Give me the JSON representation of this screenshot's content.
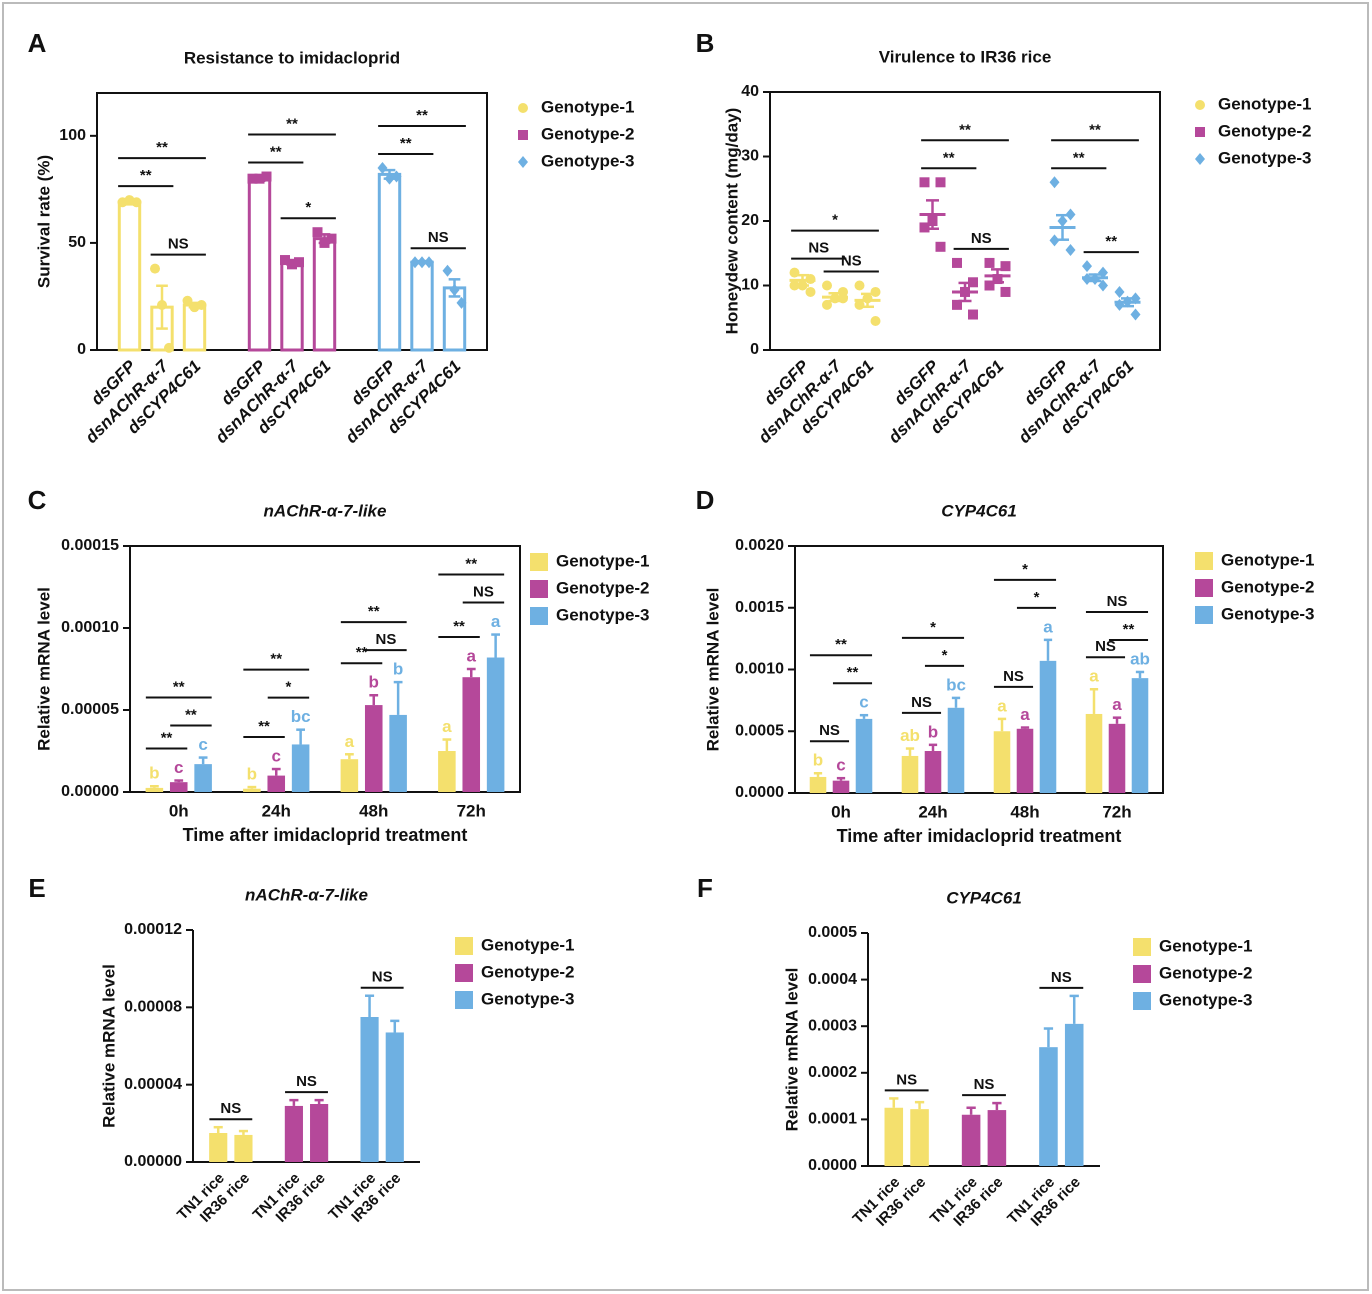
{
  "chart_data": [
    {
      "panel": "A",
      "type": "bar",
      "hollow": true,
      "grouping": "series",
      "frame": true,
      "label_style": "italic",
      "title": "Resistance to imidacloprid",
      "y_label": "Survival rate (%)",
      "categories": [
        "dsGFP",
        "dsnAChR-α-7",
        "dsCYP4C61"
      ],
      "ylim": [
        0,
        120
      ],
      "yticks": [
        0,
        50,
        100
      ],
      "markers": [
        "circle",
        "square",
        "diamond"
      ],
      "series": [
        {
          "name": "Genotype-1",
          "color": "#f4e06d",
          "values": [
            69,
            20,
            21
          ],
          "errors": [
            1,
            10,
            1
          ],
          "points": [
            [
              69,
              70,
              69
            ],
            [
              38,
              21,
              1
            ],
            [
              23,
              20,
              21
            ]
          ]
        },
        {
          "name": "Genotype-2",
          "color": "#b5489a",
          "values": [
            80,
            41,
            52
          ],
          "errors": [
            1,
            1,
            2
          ],
          "points": [
            [
              80,
              80,
              81
            ],
            [
              42,
              40,
              41
            ],
            [
              55,
              50,
              52
            ]
          ]
        },
        {
          "name": "Genotype-3",
          "color": "#6eb0e2",
          "values": [
            82,
            41,
            29
          ],
          "errors": [
            2,
            0.5,
            4
          ],
          "points": [
            [
              85,
              80,
              81
            ],
            [
              41,
              41,
              41
            ],
            [
              37,
              28,
              22
            ]
          ]
        }
      ],
      "annotations": [
        {
          "label": "**",
          "series": 0,
          "pair": [
            0,
            1
          ]
        },
        {
          "label": "NS",
          "series": 0,
          "pair": [
            1,
            2
          ]
        },
        {
          "label": "**",
          "series": 0,
          "pair": [
            0,
            2
          ]
        },
        {
          "label": "**",
          "series": 1,
          "pair": [
            0,
            1
          ]
        },
        {
          "label": "*",
          "series": 1,
          "pair": [
            1,
            2
          ]
        },
        {
          "label": "**",
          "series": 1,
          "pair": [
            0,
            2
          ]
        },
        {
          "label": "**",
          "series": 2,
          "pair": [
            0,
            1
          ]
        },
        {
          "label": "NS",
          "series": 2,
          "pair": [
            1,
            2
          ]
        },
        {
          "label": "**",
          "series": 2,
          "pair": [
            0,
            2
          ]
        }
      ]
    },
    {
      "panel": "B",
      "type": "dot",
      "grouping": "series",
      "frame": true,
      "label_style": "italic",
      "title": "Virulence to IR36 rice",
      "y_label": "Honeydew content (mg/day)",
      "categories": [
        "dsGFP",
        "dsnAChR-α-7",
        "dsCYP4C61"
      ],
      "ylim": [
        0,
        40
      ],
      "yticks": [
        0,
        10,
        20,
        30,
        40
      ],
      "markers": [
        "circle",
        "square",
        "diamond"
      ],
      "series": [
        {
          "name": "Genotype-1",
          "color": "#f4e06d",
          "values": [
            10.8,
            8.2,
            7.7
          ],
          "errors": [
            0.8,
            0.6,
            1
          ],
          "points": [
            [
              12,
              11,
              10,
              10,
              9
            ],
            [
              10,
              9,
              8,
              7,
              8
            ],
            [
              10,
              9,
              8,
              7,
              4.5
            ]
          ]
        },
        {
          "name": "Genotype-2",
          "color": "#b5489a",
          "values": [
            21,
            9,
            11.5
          ],
          "errors": [
            2.2,
            1.4,
            1
          ],
          "points": [
            [
              26,
              26,
              20,
              19,
              16
            ],
            [
              13.5,
              10.5,
              9,
              7,
              5.5
            ],
            [
              13.5,
              13,
              11,
              10,
              9
            ]
          ]
        },
        {
          "name": "Genotype-3",
          "color": "#6eb0e2",
          "values": [
            19,
            11.2,
            7.4
          ],
          "errors": [
            1.9,
            0.5,
            0.6
          ],
          "points": [
            [
              26,
              21,
              20,
              17,
              15.5
            ],
            [
              13,
              12,
              11,
              11,
              10
            ],
            [
              9,
              8,
              7.5,
              7,
              5.5
            ]
          ]
        }
      ],
      "annotations": [
        {
          "label": "NS",
          "series": 0,
          "pair": [
            0,
            1
          ]
        },
        {
          "label": "NS",
          "series": 0,
          "pair": [
            1,
            2
          ]
        },
        {
          "label": "*",
          "series": 0,
          "pair": [
            0,
            2
          ]
        },
        {
          "label": "**",
          "series": 1,
          "pair": [
            0,
            1
          ]
        },
        {
          "label": "NS",
          "series": 1,
          "pair": [
            1,
            2
          ]
        },
        {
          "label": "**",
          "series": 1,
          "pair": [
            0,
            2
          ]
        },
        {
          "label": "**",
          "series": 2,
          "pair": [
            0,
            1
          ]
        },
        {
          "label": "**",
          "series": 2,
          "pair": [
            1,
            2
          ]
        },
        {
          "label": "**",
          "series": 2,
          "pair": [
            0,
            2
          ]
        }
      ]
    },
    {
      "panel": "C",
      "type": "bar",
      "grouping": "category",
      "frame": true,
      "title_style": "italic",
      "title": "nAChR-α-7-like",
      "y_label": "Relative mRNA level",
      "x_label": "Time after imidacloprid treatment",
      "categories": [
        "0h",
        "24h",
        "48h",
        "72h"
      ],
      "ylim": [
        0,
        0.00015
      ],
      "yticks": [
        {
          "value": 0,
          "label": "0.00000"
        },
        {
          "value": 5e-05,
          "label": "0.00005"
        },
        {
          "value": 0.0001,
          "label": "0.00010"
        },
        {
          "value": 0.00015,
          "label": "0.00015"
        }
      ],
      "series": [
        {
          "name": "Genotype-1",
          "color": "#f4e06d",
          "values": [
            2.5e-06,
            2e-06,
            2e-05,
            2.5e-05
          ],
          "errors": [
            1e-06,
            1e-06,
            3e-06,
            7e-06
          ],
          "letters": [
            "b",
            "b",
            "a",
            "a"
          ]
        },
        {
          "name": "Genotype-2",
          "color": "#b5489a",
          "values": [
            6e-06,
            1e-05,
            5.3e-05,
            7e-05
          ],
          "errors": [
            1e-06,
            4e-06,
            6e-06,
            5e-06
          ],
          "letters": [
            "c",
            "c",
            "b",
            "a"
          ]
        },
        {
          "name": "Genotype-3",
          "color": "#6eb0e2",
          "values": [
            1.7e-05,
            2.9e-05,
            4.7e-05,
            8.2e-05
          ],
          "errors": [
            4e-06,
            9e-06,
            2e-05,
            1.4e-05
          ],
          "letters": [
            "c",
            "bc",
            "b",
            "a"
          ]
        }
      ],
      "annotations": [
        {
          "label": "**",
          "category": 0,
          "pair": [
            0,
            1
          ]
        },
        {
          "label": "**",
          "category": 0,
          "pair": [
            1,
            2
          ]
        },
        {
          "label": "**",
          "category": 0,
          "pair": [
            0,
            2
          ]
        },
        {
          "label": "**",
          "category": 1,
          "pair": [
            0,
            1
          ]
        },
        {
          "label": "*",
          "category": 1,
          "pair": [
            1,
            2
          ]
        },
        {
          "label": "**",
          "category": 1,
          "pair": [
            0,
            2
          ]
        },
        {
          "label": "**",
          "category": 2,
          "pair": [
            0,
            1
          ]
        },
        {
          "label": "NS",
          "category": 2,
          "pair": [
            1,
            2
          ]
        },
        {
          "label": "**",
          "category": 2,
          "pair": [
            0,
            2
          ]
        },
        {
          "label": "**",
          "category": 3,
          "pair": [
            0,
            1
          ]
        },
        {
          "label": "NS",
          "category": 3,
          "pair": [
            1,
            2
          ]
        },
        {
          "label": "**",
          "category": 3,
          "pair": [
            0,
            2
          ]
        }
      ]
    },
    {
      "panel": "D",
      "type": "bar",
      "grouping": "category",
      "frame": true,
      "title_style": "italic",
      "title": "CYP4C61",
      "y_label": "Relative mRNA level",
      "x_label": "Time after imidacloprid treatment",
      "categories": [
        "0h",
        "24h",
        "48h",
        "72h"
      ],
      "ylim": [
        0,
        0.002
      ],
      "yticks": [
        {
          "value": 0,
          "label": "0.0000"
        },
        {
          "value": 0.0005,
          "label": "0.0005"
        },
        {
          "value": 0.001,
          "label": "0.0010"
        },
        {
          "value": 0.0015,
          "label": "0.0015"
        },
        {
          "value": 0.002,
          "label": "0.0020"
        }
      ],
      "series": [
        {
          "name": "Genotype-1",
          "color": "#f4e06d",
          "values": [
            0.00013,
            0.0003,
            0.0005,
            0.00064
          ],
          "errors": [
            3e-05,
            6e-05,
            0.0001,
            0.0002
          ],
          "letters": [
            "b",
            "ab",
            "a",
            "a"
          ]
        },
        {
          "name": "Genotype-2",
          "color": "#b5489a",
          "values": [
            0.0001,
            0.00034,
            0.00052,
            0.00056
          ],
          "errors": [
            2e-05,
            5e-05,
            1e-05,
            5e-05
          ],
          "letters": [
            "c",
            "b",
            "a",
            "a"
          ]
        },
        {
          "name": "Genotype-3",
          "color": "#6eb0e2",
          "values": [
            0.0006,
            0.00069,
            0.00107,
            0.00093
          ],
          "errors": [
            3e-05,
            8e-05,
            0.00017,
            5e-05
          ],
          "letters": [
            "c",
            "bc",
            "a",
            "ab"
          ]
        }
      ],
      "annotations": [
        {
          "label": "NS",
          "category": 0,
          "pair": [
            0,
            1
          ]
        },
        {
          "label": "**",
          "category": 0,
          "pair": [
            1,
            2
          ]
        },
        {
          "label": "**",
          "category": 0,
          "pair": [
            0,
            2
          ]
        },
        {
          "label": "NS",
          "category": 1,
          "pair": [
            0,
            1
          ]
        },
        {
          "label": "*",
          "category": 1,
          "pair": [
            1,
            2
          ]
        },
        {
          "label": "*",
          "category": 1,
          "pair": [
            0,
            2
          ]
        },
        {
          "label": "NS",
          "category": 2,
          "pair": [
            0,
            1
          ]
        },
        {
          "label": "*",
          "category": 2,
          "pair": [
            1,
            2
          ]
        },
        {
          "label": "*",
          "category": 2,
          "pair": [
            0,
            2
          ]
        },
        {
          "label": "NS",
          "category": 3,
          "pair": [
            0,
            1
          ]
        },
        {
          "label": "**",
          "category": 3,
          "pair": [
            1,
            2
          ]
        },
        {
          "label": "NS",
          "category": 3,
          "pair": [
            0,
            2
          ]
        }
      ]
    },
    {
      "panel": "E",
      "type": "bar",
      "grouping": "series",
      "frame": false,
      "title_style": "italic",
      "title": "nAChR-α-7-like",
      "y_label": "Relative mRNA level",
      "categories": [
        "TN1 rice",
        "IR36 rice"
      ],
      "ylim": [
        0,
        0.00012
      ],
      "yticks": [
        {
          "value": 0,
          "label": "0.00000"
        },
        {
          "value": 4e-05,
          "label": "0.00004"
        },
        {
          "value": 8e-05,
          "label": "0.00008"
        },
        {
          "value": 0.00012,
          "label": "0.00012"
        }
      ],
      "series": [
        {
          "name": "Genotype-1",
          "color": "#f4e06d",
          "values": [
            1.5e-05,
            1.4e-05
          ],
          "errors": [
            3e-06,
            2e-06
          ]
        },
        {
          "name": "Genotype-2",
          "color": "#b5489a",
          "values": [
            2.9e-05,
            3e-05
          ],
          "errors": [
            3e-06,
            2e-06
          ]
        },
        {
          "name": "Genotype-3",
          "color": "#6eb0e2",
          "values": [
            7.5e-05,
            6.7e-05
          ],
          "errors": [
            1.1e-05,
            6e-06
          ]
        }
      ],
      "annotations": [
        {
          "label": "NS",
          "series": 0,
          "pair": [
            0,
            1
          ]
        },
        {
          "label": "NS",
          "series": 1,
          "pair": [
            0,
            1
          ]
        },
        {
          "label": "NS",
          "series": 2,
          "pair": [
            0,
            1
          ]
        }
      ]
    },
    {
      "panel": "F",
      "type": "bar",
      "grouping": "series",
      "frame": false,
      "title_style": "italic",
      "title": "CYP4C61",
      "y_label": "Relative mRNA level",
      "categories": [
        "TN1 rice",
        "IR36 rice"
      ],
      "ylim": [
        0,
        0.0005
      ],
      "yticks": [
        {
          "value": 0,
          "label": "0.0000"
        },
        {
          "value": 0.0001,
          "label": "0.0001"
        },
        {
          "value": 0.0002,
          "label": "0.0002"
        },
        {
          "value": 0.0003,
          "label": "0.0003"
        },
        {
          "value": 0.0004,
          "label": "0.0004"
        },
        {
          "value": 0.0005,
          "label": "0.0005"
        }
      ],
      "series": [
        {
          "name": "Genotype-1",
          "color": "#f4e06d",
          "values": [
            0.000125,
            0.000122
          ],
          "errors": [
            2e-05,
            1.5e-05
          ]
        },
        {
          "name": "Genotype-2",
          "color": "#b5489a",
          "values": [
            0.00011,
            0.00012
          ],
          "errors": [
            1.5e-05,
            1.5e-05
          ]
        },
        {
          "name": "Genotype-3",
          "color": "#6eb0e2",
          "values": [
            0.000255,
            0.000305
          ],
          "errors": [
            4e-05,
            6e-05
          ]
        }
      ],
      "annotations": [
        {
          "label": "NS",
          "series": 0,
          "pair": [
            0,
            1
          ]
        },
        {
          "label": "NS",
          "series": 1,
          "pair": [
            0,
            1
          ]
        },
        {
          "label": "NS",
          "series": 2,
          "pair": [
            0,
            1
          ]
        }
      ]
    }
  ]
}
